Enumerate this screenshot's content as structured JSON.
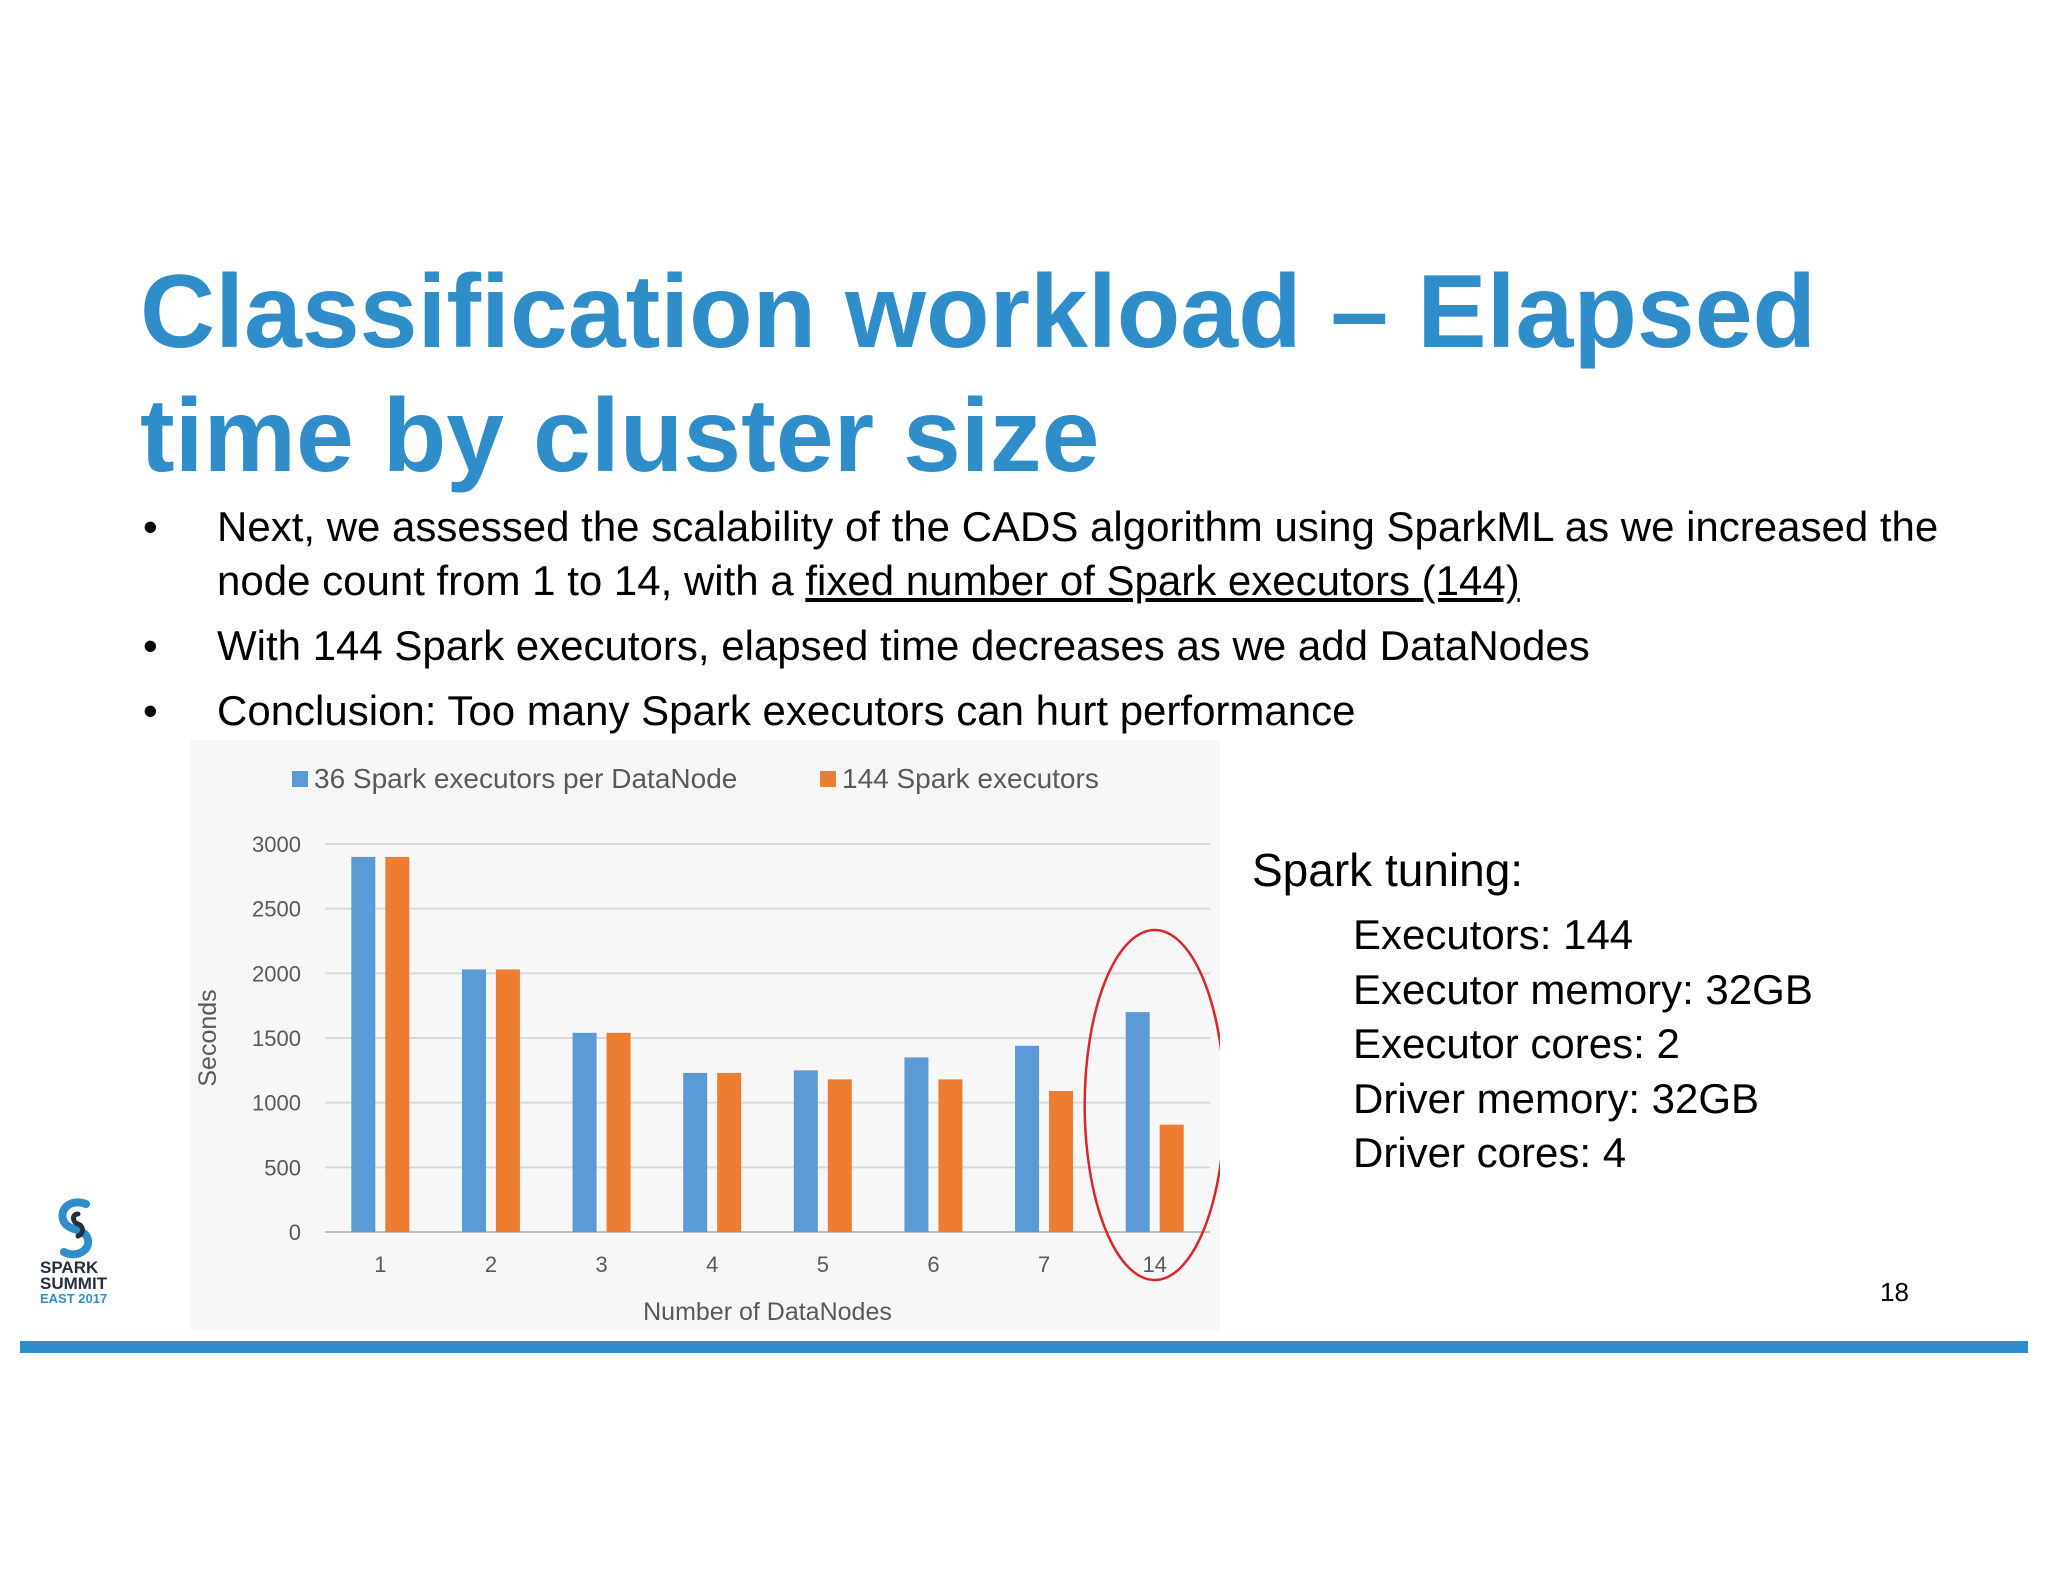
{
  "title": {
    "line1": "Classification workload – Elapsed",
    "line2": "time by cluster size"
  },
  "bullets": {
    "b1": {
      "text1": "Next, we assessed the scalability of the CADS algorithm using SparkML as we increased the node count from 1 to 14, with a ",
      "underline": "fixed number of Spark executors (144)"
    },
    "b2": "With 144 Spark executors, elapsed time decreases as we add DataNodes",
    "b3": "Conclusion:  Too many Spark executors can hurt performance",
    "marker": "•"
  },
  "tuning": {
    "heading": "Spark tuning:",
    "items": [
      "Executors:  144",
      "Executor memory:  32GB",
      "Executor cores:  2",
      "Driver memory: 32GB",
      "Driver cores: 4"
    ]
  },
  "page_number": "18",
  "logo": {
    "line1": "SPARK",
    "line2": "SUMMIT",
    "line3": "EAST 2017"
  },
  "colors": {
    "accent": "#2f8ec9",
    "series1": "#5b9bd5",
    "series2": "#ed7d31",
    "highlight": "#d9262b"
  },
  "chart_data": {
    "type": "bar",
    "categories": [
      "1",
      "2",
      "3",
      "4",
      "5",
      "6",
      "7",
      "14"
    ],
    "series": [
      {
        "name": "36 Spark executors per DataNode",
        "values": [
          2900,
          2030,
          1540,
          1230,
          1250,
          1350,
          1440,
          1700
        ]
      },
      {
        "name": "144 Spark executors",
        "values": [
          2900,
          2030,
          1540,
          1230,
          1180,
          1180,
          1090,
          830
        ]
      }
    ],
    "xlabel": "Number of DataNodes",
    "ylabel": "Seconds",
    "ylim": [
      0,
      3000
    ],
    "yticks": [
      0,
      500,
      1000,
      1500,
      2000,
      2500,
      3000
    ],
    "grid": true,
    "legend": "top",
    "annotation": "red ellipse around 14"
  }
}
